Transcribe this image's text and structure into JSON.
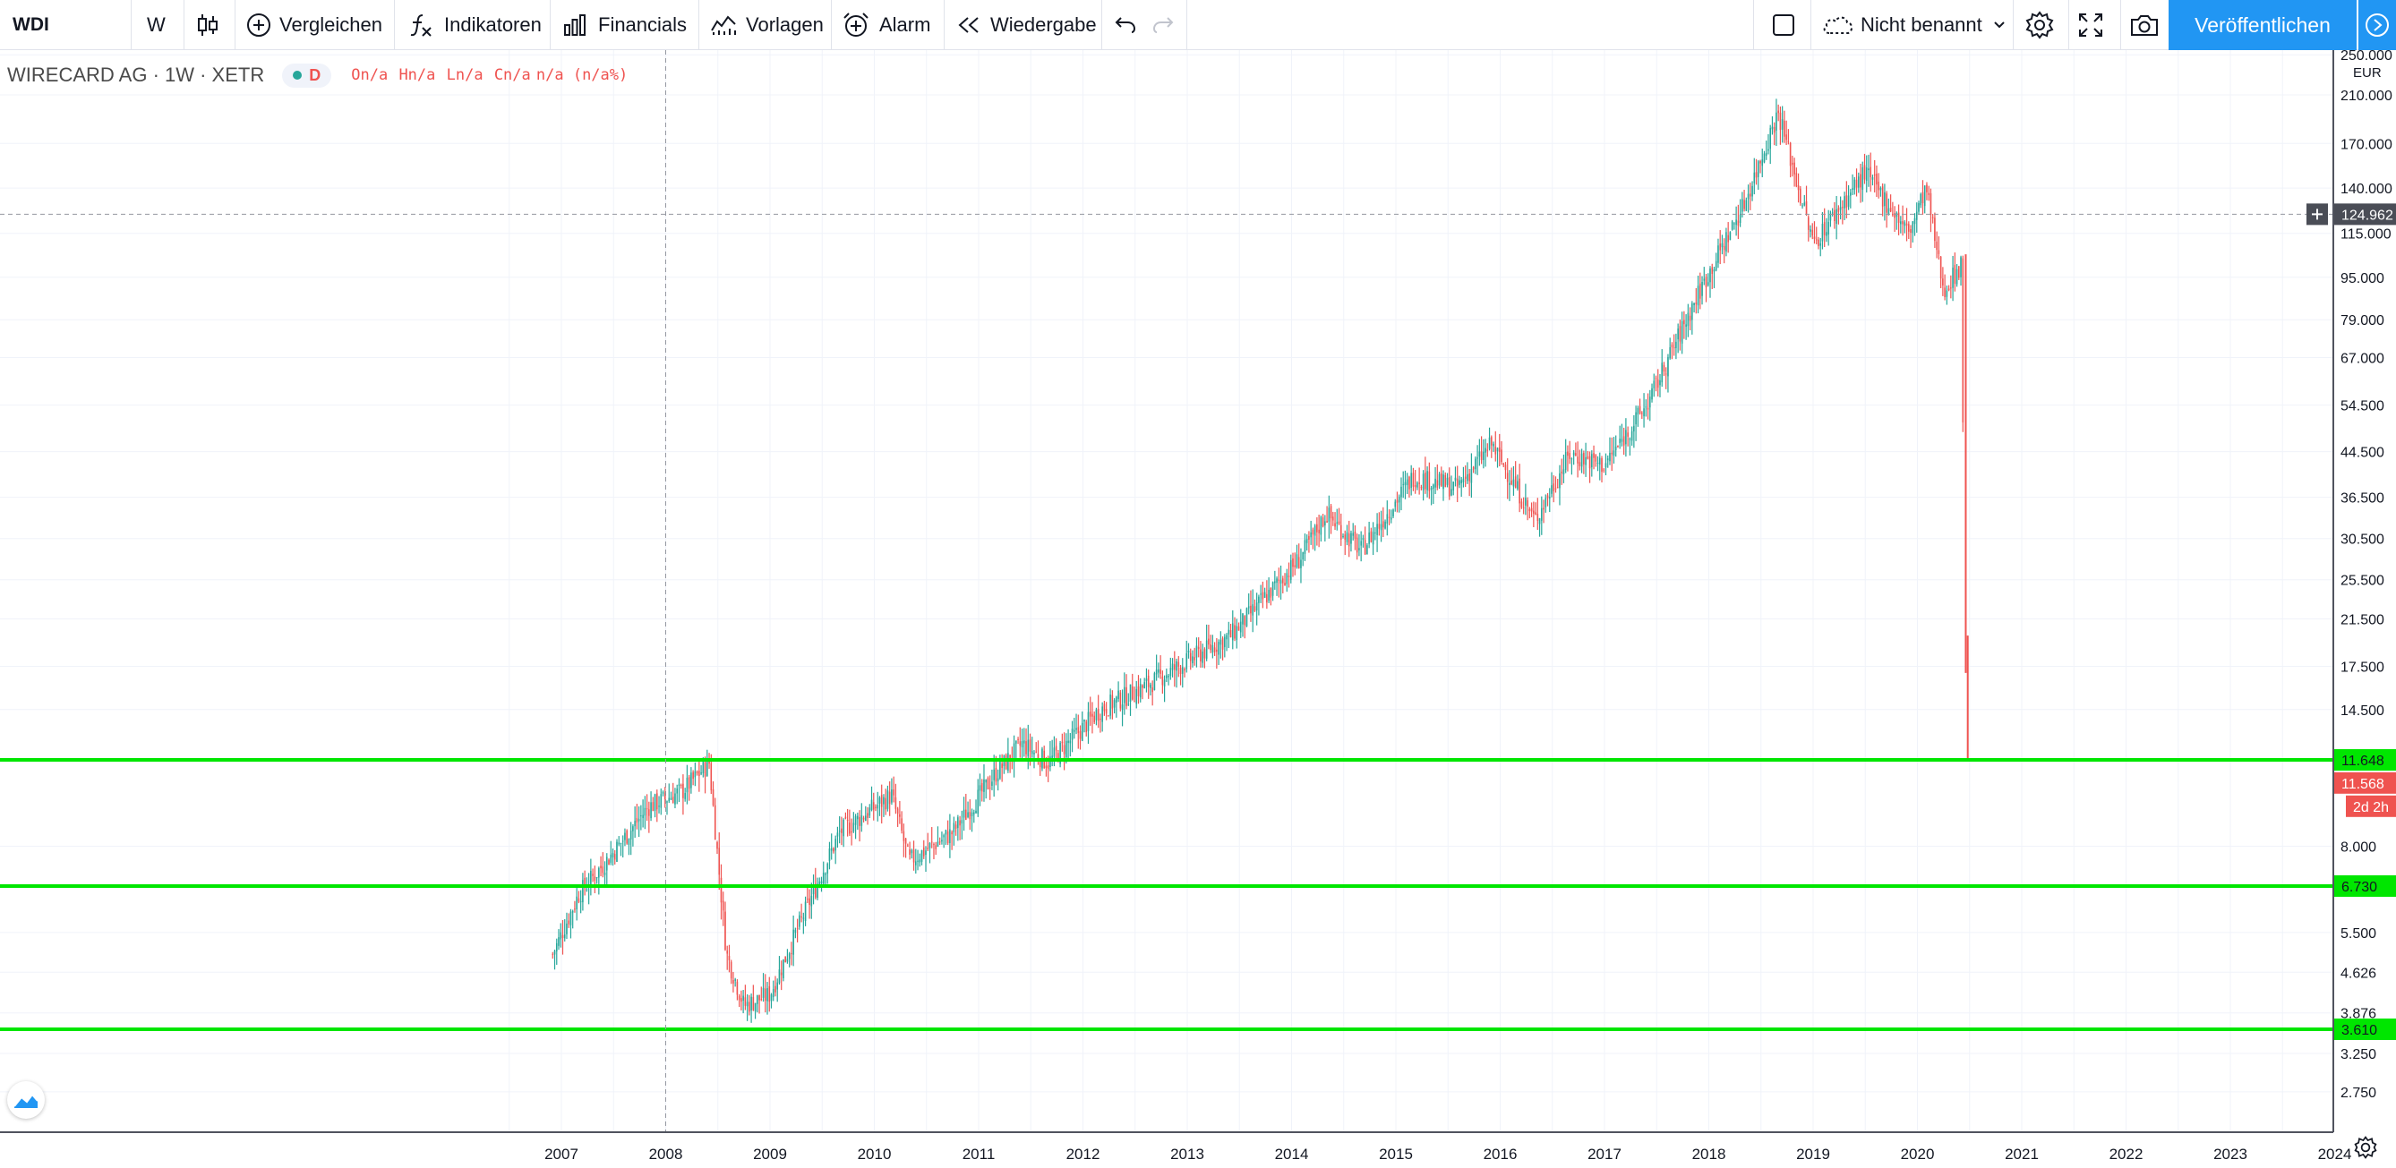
{
  "toolbar": {
    "symbol": "WDI",
    "interval": "W",
    "compare_label": "Vergleichen",
    "indicators_label": "Indikatoren",
    "financials_label": "Financials",
    "templates_label": "Vorlagen",
    "alert_label": "Alarm",
    "replay_label": "Wiedergabe",
    "layout_name": "Nicht benannt",
    "publish_label": "Veröffentlichen"
  },
  "legend": {
    "title": "WIRECARD AG · 1W · XETR",
    "badge": "D",
    "o": "On/a",
    "h": "Hn/a",
    "l": "Ln/a",
    "c": "Cn/a",
    "chg": "n/a (n/a%)"
  },
  "colors": {
    "up": "#26a69a",
    "down": "#ef5350",
    "level": "#00e600",
    "accent": "#2196f3",
    "crosshair_label": "#4a4d56"
  },
  "chart_data": {
    "type": "candlestick",
    "currency": "EUR",
    "y_scale": "log",
    "y_ticks": [
      "250.000",
      "210.000",
      "170.000",
      "140.000",
      "115.000",
      "95.000",
      "79.000",
      "67.000",
      "54.500",
      "44.500",
      "36.500",
      "30.500",
      "25.500",
      "21.500",
      "17.500",
      "14.500",
      "8.000",
      "5.500",
      "4.626",
      "3.876",
      "3.250",
      "2.750"
    ],
    "x_ticks": [
      "2007",
      "2008",
      "2009",
      "2010",
      "2011",
      "2012",
      "2013",
      "2014",
      "2015",
      "2016",
      "2017",
      "2018",
      "2019",
      "2020",
      "2021",
      "2022",
      "2023",
      "2024"
    ],
    "price_path": [
      {
        "t": "2006-12",
        "p": 5.0
      },
      {
        "t": "2007-03",
        "p": 6.5
      },
      {
        "t": "2007-07",
        "p": 7.8
      },
      {
        "t": "2007-11",
        "p": 9.5
      },
      {
        "t": "2008-03",
        "p": 10.2
      },
      {
        "t": "2008-06",
        "p": 11.5
      },
      {
        "t": "2008-08",
        "p": 5.0
      },
      {
        "t": "2008-10",
        "p": 4.0
      },
      {
        "t": "2009-01",
        "p": 4.2
      },
      {
        "t": "2009-04",
        "p": 5.5
      },
      {
        "t": "2009-09",
        "p": 8.5
      },
      {
        "t": "2010-03",
        "p": 10.0
      },
      {
        "t": "2010-05",
        "p": 7.5
      },
      {
        "t": "2010-10",
        "p": 8.5
      },
      {
        "t": "2011-03",
        "p": 11.0
      },
      {
        "t": "2011-06",
        "p": 12.5
      },
      {
        "t": "2011-09",
        "p": 11.5
      },
      {
        "t": "2012-03",
        "p": 14.5
      },
      {
        "t": "2012-08",
        "p": 16.0
      },
      {
        "t": "2013-06",
        "p": 20.0
      },
      {
        "t": "2014-02",
        "p": 28.0
      },
      {
        "t": "2014-05",
        "p": 34.0
      },
      {
        "t": "2014-09",
        "p": 29.0
      },
      {
        "t": "2015-03",
        "p": 40.0
      },
      {
        "t": "2015-08",
        "p": 38.0
      },
      {
        "t": "2015-12",
        "p": 46.0
      },
      {
        "t": "2016-05",
        "p": 33.0
      },
      {
        "t": "2016-09",
        "p": 44.0
      },
      {
        "t": "2017-01",
        "p": 42.0
      },
      {
        "t": "2017-06",
        "p": 55.0
      },
      {
        "t": "2017-12",
        "p": 90.0
      },
      {
        "t": "2018-05",
        "p": 130.0
      },
      {
        "t": "2018-09",
        "p": 195.0
      },
      {
        "t": "2019-01",
        "p": 110.0
      },
      {
        "t": "2019-07",
        "p": 150.0
      },
      {
        "t": "2019-12",
        "p": 115.0
      },
      {
        "t": "2020-02",
        "p": 140.0
      },
      {
        "t": "2020-04",
        "p": 90.0
      },
      {
        "t": "2020-06",
        "p": 100.0
      },
      {
        "t": "2020-06-18",
        "p": 20.0
      },
      {
        "t": "2020-06-25",
        "p": 11.568
      }
    ],
    "horizontal_levels": [
      {
        "label": "11.648",
        "value": 11.648
      },
      {
        "label": "6.730",
        "value": 6.73
      },
      {
        "label": "3.610",
        "value": 3.61
      }
    ],
    "last_price": {
      "label": "11.568",
      "countdown": "2d 2h"
    },
    "crosshair": {
      "price_label": "124.962",
      "date": "2008-01"
    }
  }
}
